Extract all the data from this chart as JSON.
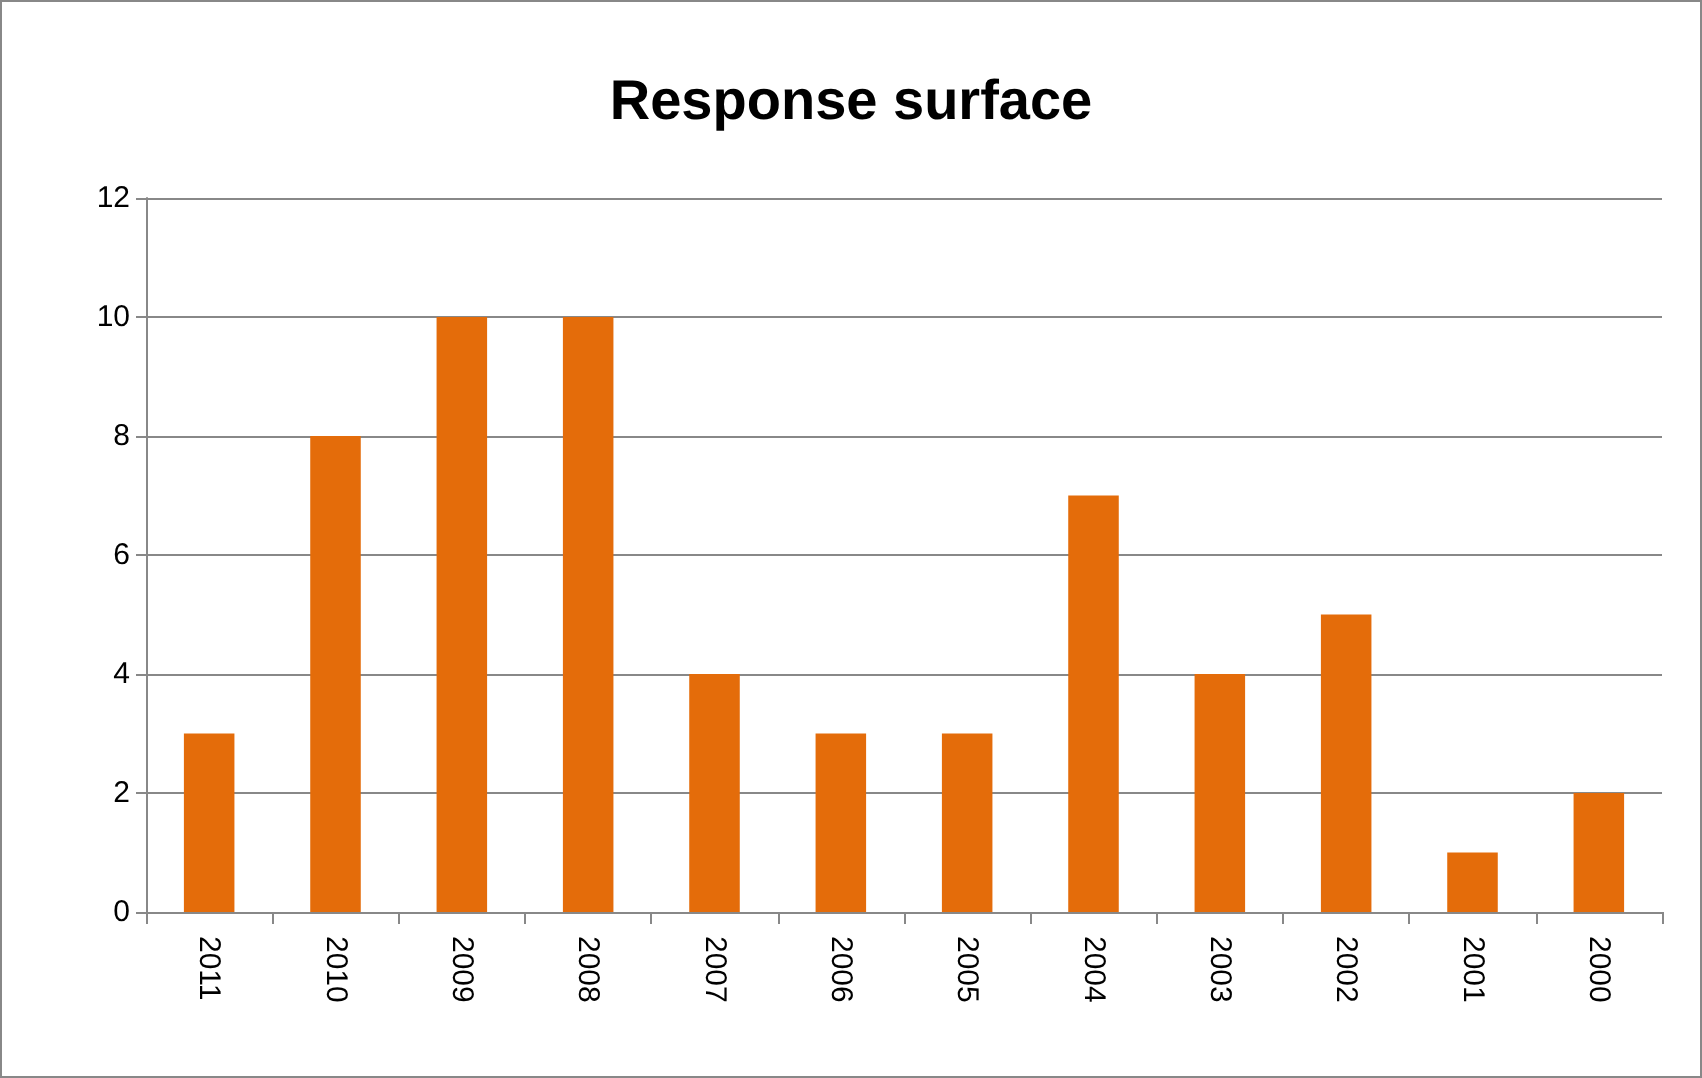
{
  "chart_data": {
    "type": "bar",
    "title": "Response surface",
    "categories": [
      "2011",
      "2010",
      "2009",
      "2008",
      "2007",
      "2006",
      "2005",
      "2004",
      "2003",
      "2002",
      "2001",
      "2000"
    ],
    "values": [
      3,
      8,
      10,
      10,
      4,
      3,
      3,
      7,
      4,
      5,
      1,
      2
    ],
    "color": "#e46c0a",
    "ylim": [
      0,
      12
    ],
    "yticks": [
      0,
      2,
      4,
      6,
      8,
      10,
      12
    ],
    "grid": "y"
  }
}
